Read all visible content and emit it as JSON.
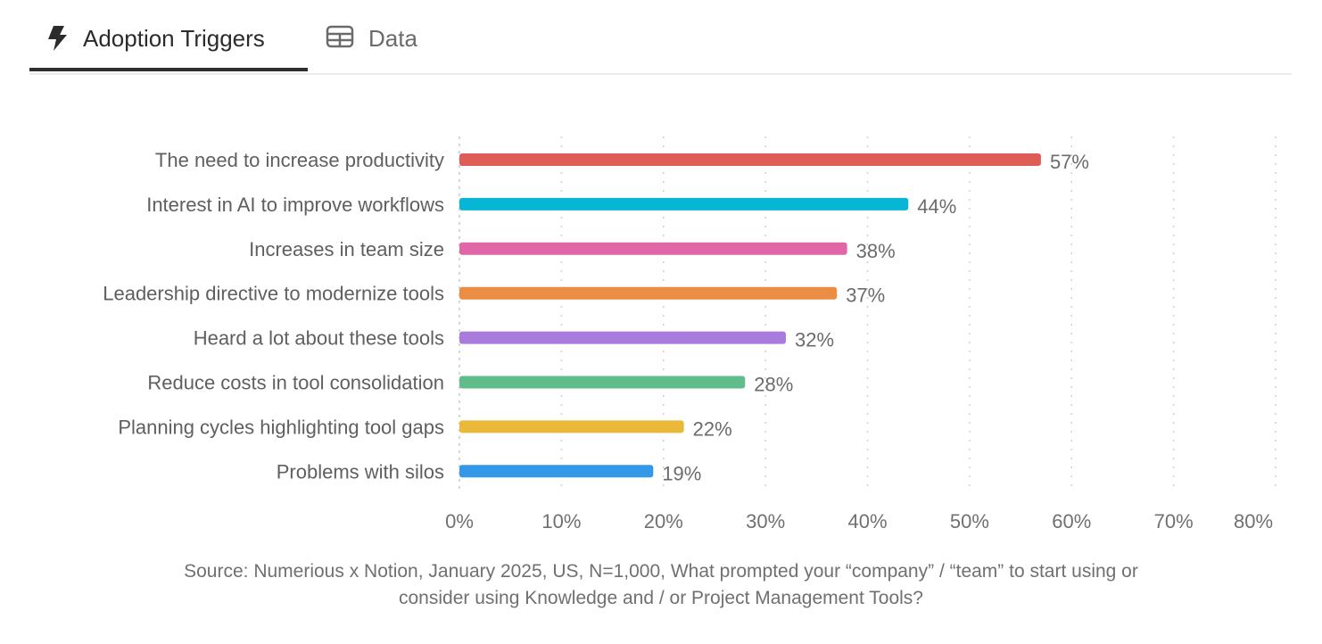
{
  "tabs": [
    {
      "label": "Adoption Triggers",
      "icon": "lightning-icon",
      "active": true
    },
    {
      "label": "Data",
      "icon": "table-icon",
      "active": false
    }
  ],
  "source": {
    "line1": "Source: Numerious x Notion, January 2025, US, N=1,000, What prompted your “company” / “team” to start using or",
    "line2": "consider using Knowledge and / or Project Management Tools?"
  },
  "chart_data": {
    "type": "bar",
    "orientation": "horizontal",
    "categories": [
      "The need to increase productivity",
      "Interest in AI to improve workflows",
      "Increases in team size",
      "Leadership directive to modernize tools",
      "Heard a lot about these tools",
      "Reduce costs in tool consolidation",
      "Planning cycles highlighting tool gaps",
      "Problems with silos"
    ],
    "values": [
      57,
      44,
      38,
      37,
      32,
      28,
      22,
      19
    ],
    "data_labels": [
      "57%",
      "44%",
      "38%",
      "37%",
      "32%",
      "28%",
      "22%",
      "19%"
    ],
    "colors": [
      "#DE5D57",
      "#06B6D4",
      "#E066A8",
      "#EB8D42",
      "#A97BDC",
      "#5FBD8B",
      "#EBB93A",
      "#3498E8"
    ],
    "xlim": [
      0,
      80
    ],
    "xticks": [
      0,
      10,
      20,
      30,
      40,
      50,
      60,
      70,
      80
    ],
    "xtick_labels": [
      "0%",
      "10%",
      "20%",
      "30%",
      "40%",
      "50%",
      "60%",
      "70%",
      "80%"
    ],
    "grid": "vertical dotted",
    "title": "",
    "xlabel": "",
    "ylabel": ""
  }
}
